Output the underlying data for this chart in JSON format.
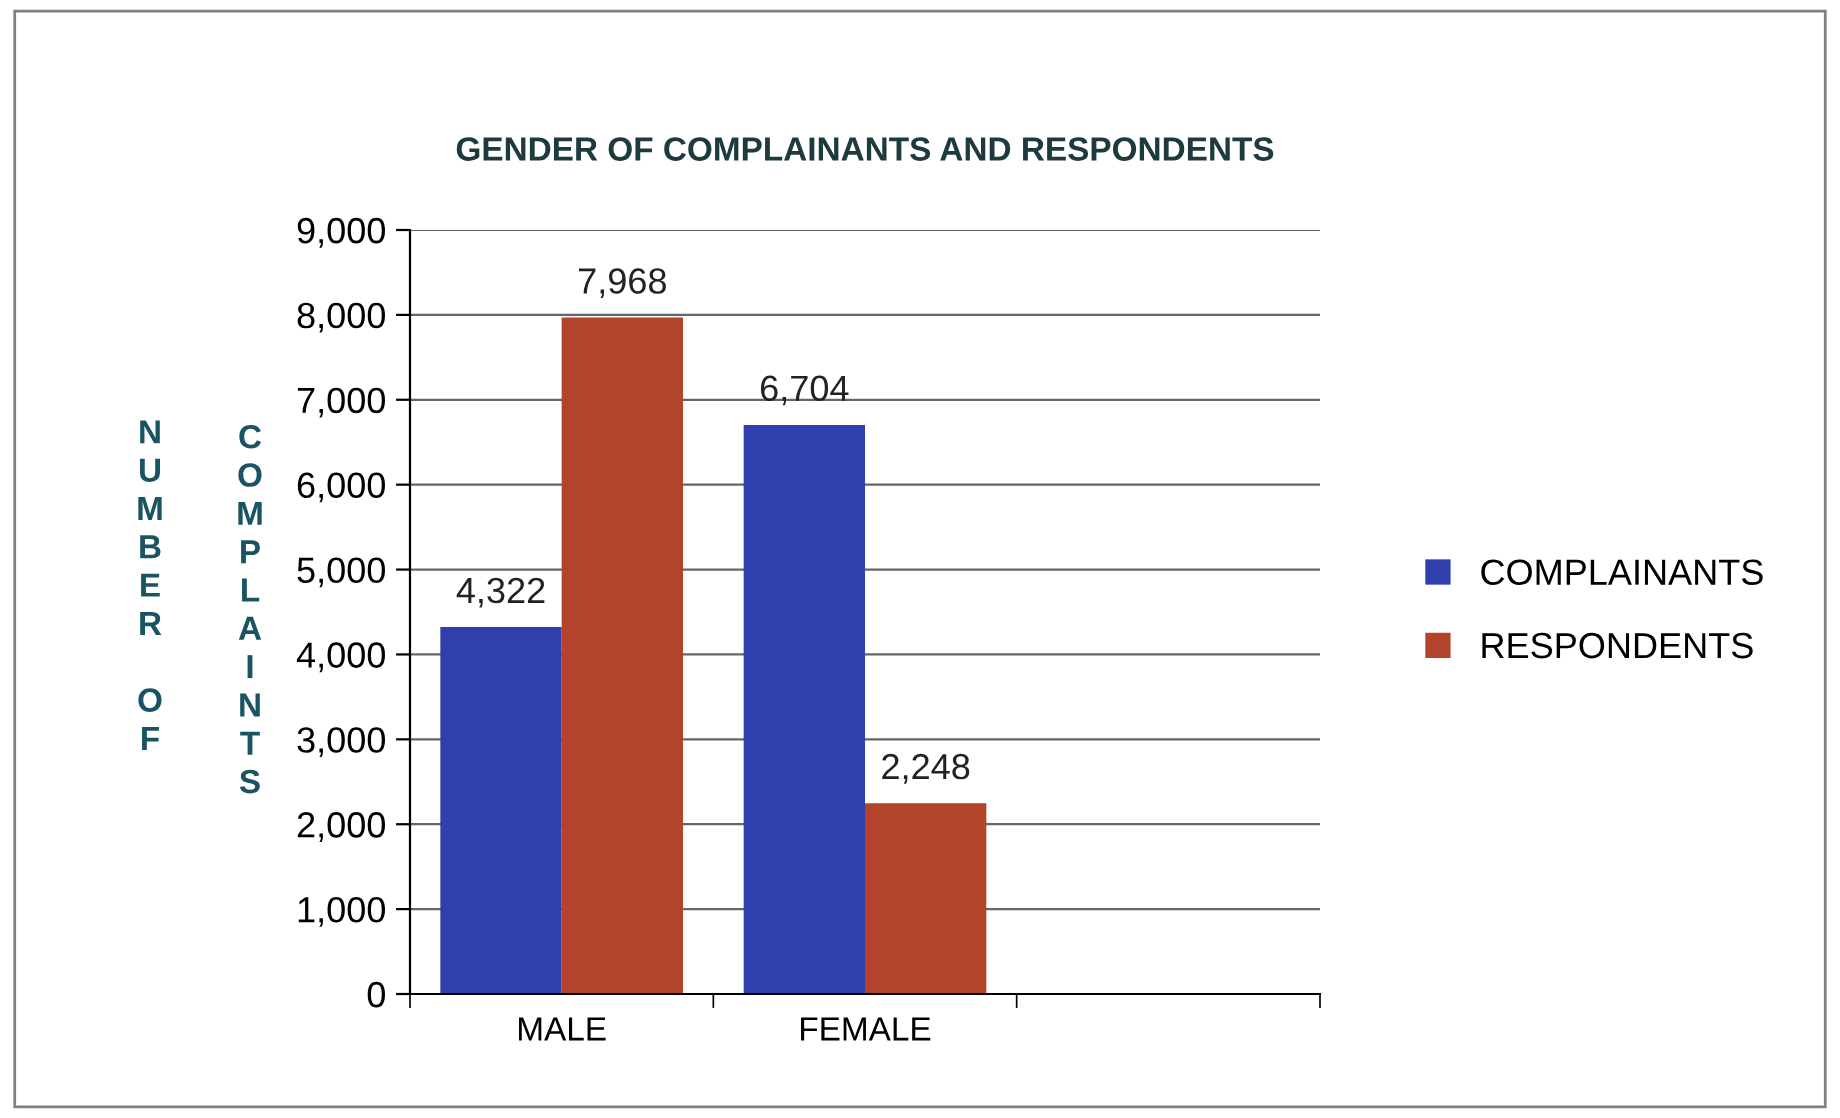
{
  "chart_data": {
    "type": "bar",
    "title": "GENDER OF COMPLAINANTS AND RESPONDENTS",
    "ylabel": "NUMBER OF COMPLAINTS",
    "categories": [
      "MALE",
      "FEMALE",
      null
    ],
    "series": [
      {
        "name": "COMPLAINANTS",
        "color": "#2f3fae",
        "values": [
          4322,
          6704,
          null
        ],
        "value_labels": [
          "4,322",
          "6,704",
          null
        ]
      },
      {
        "name": "RESPONDENTS",
        "color": "#b4432b",
        "values": [
          7968,
          2248,
          null
        ],
        "value_labels": [
          "7,968",
          "2,248",
          null
        ]
      }
    ],
    "ylim": [
      0,
      9000
    ],
    "yticks": [
      0,
      {
        "value": 1000,
        "label": "1,000"
      },
      {
        "value": 2000,
        "label": "2,000"
      },
      {
        "value": 3000,
        "label": "3,000"
      },
      {
        "value": 4000,
        "label": "4,000"
      },
      {
        "value": 5000,
        "label": "5,000"
      },
      {
        "value": 6000,
        "label": "6,000"
      },
      {
        "value": 7000,
        "label": "7,000"
      },
      {
        "value": 8000,
        "label": "8,000"
      },
      {
        "value": 9000,
        "label": "9,000"
      }
    ],
    "grid": "y",
    "legend": "right"
  }
}
